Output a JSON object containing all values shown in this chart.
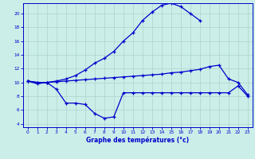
{
  "title": "Graphe des températures (°c)",
  "bg_color": "#cceee8",
  "grid_color": "#aad4ce",
  "line_color": "#0000cc",
  "xlim": [
    -0.5,
    23.5
  ],
  "ylim": [
    3.5,
    21.5
  ],
  "yticks": [
    4,
    6,
    8,
    10,
    12,
    14,
    16,
    18,
    20
  ],
  "xticks": [
    0,
    1,
    2,
    3,
    4,
    5,
    6,
    7,
    8,
    9,
    10,
    11,
    12,
    13,
    14,
    15,
    16,
    17,
    18,
    19,
    20,
    21,
    22,
    23
  ],
  "x_max": [
    0,
    1,
    2,
    3,
    4,
    5,
    6,
    7,
    8,
    9,
    10,
    11,
    12,
    13,
    14,
    15,
    16,
    17,
    18
  ],
  "y_max": [
    10.2,
    10.0,
    10.0,
    10.2,
    10.5,
    11.0,
    11.8,
    12.8,
    13.5,
    14.5,
    16.0,
    17.2,
    19.0,
    20.2,
    21.2,
    21.5,
    21.0,
    20.0,
    19.0
  ],
  "x_avg": [
    0,
    1,
    2,
    3,
    4,
    5,
    6,
    7,
    8,
    9,
    10,
    11,
    12,
    13,
    14,
    15,
    16,
    17,
    18,
    19,
    20,
    21,
    22,
    23
  ],
  "y_avg": [
    10.2,
    10.0,
    10.0,
    10.1,
    10.2,
    10.3,
    10.4,
    10.5,
    10.6,
    10.7,
    10.8,
    10.9,
    11.0,
    11.1,
    11.2,
    11.4,
    11.5,
    11.7,
    11.9,
    12.3,
    12.5,
    10.5,
    10.0,
    8.2
  ],
  "x_min": [
    0,
    1,
    2,
    3,
    4,
    5,
    6,
    7,
    8,
    9,
    10,
    11,
    12,
    13,
    14,
    15,
    16,
    17,
    18,
    19,
    20,
    21,
    22,
    23
  ],
  "y_min": [
    10.2,
    9.8,
    10.0,
    9.0,
    7.0,
    7.0,
    6.8,
    5.5,
    4.8,
    5.0,
    8.5,
    8.5,
    8.5,
    8.5,
    8.5,
    8.5,
    8.5,
    8.5,
    8.5,
    8.5,
    8.5,
    8.5,
    9.5,
    8.0
  ]
}
